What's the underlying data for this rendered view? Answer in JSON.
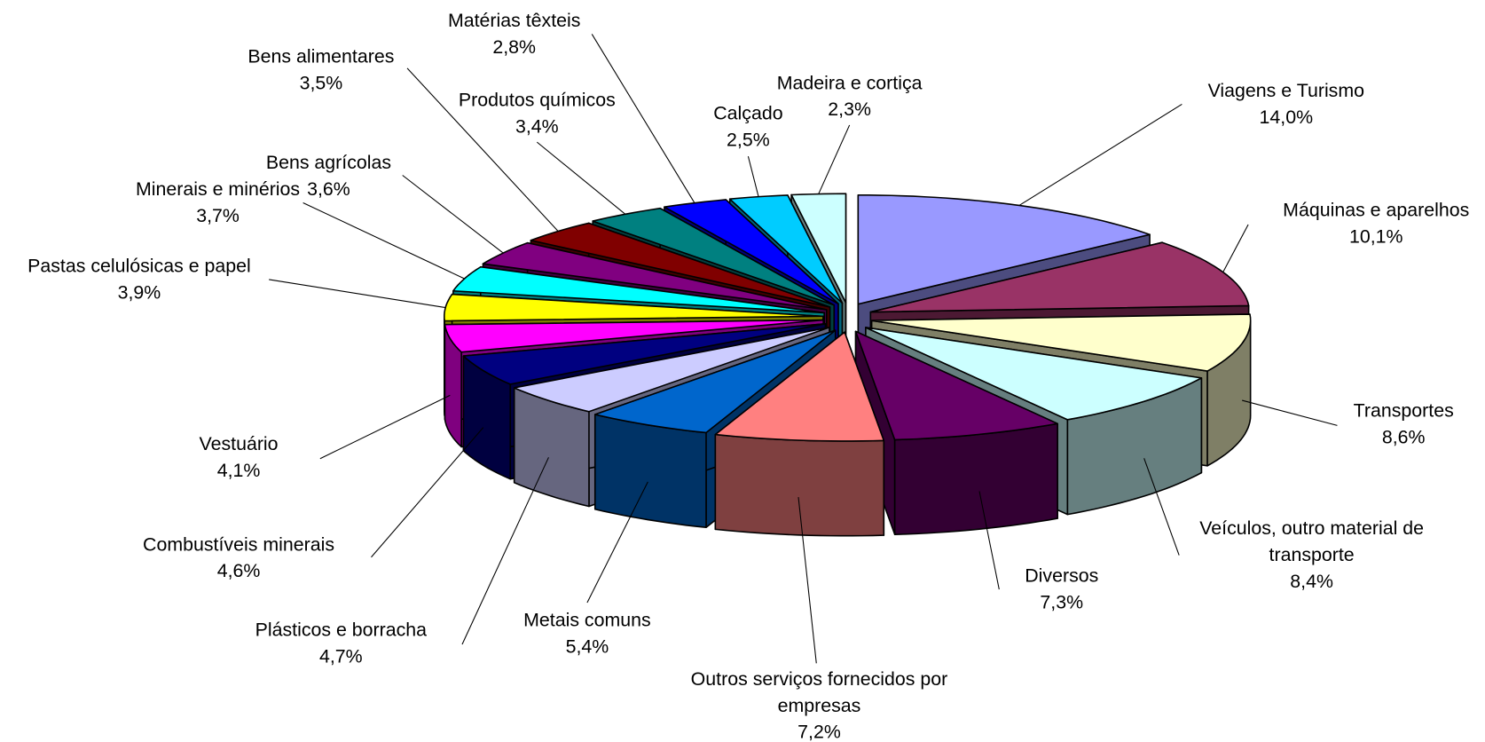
{
  "chart_data": {
    "type": "pie3d",
    "categories": [
      "Viagens e Turismo",
      "Máquinas e aparelhos",
      "Transportes",
      "Veículos, outro material de transporte",
      "Diversos",
      "Outros serviços fornecidos por empresas",
      "Metais comuns",
      "Plásticos e borracha",
      "Combustíveis minerais",
      "Vestuário",
      "Pastas celulósicas e papel",
      "Minerais e minérios",
      "Bens agrícolas",
      "Bens alimentares",
      "Produtos químicos",
      "Matérias têxteis",
      "Calçado",
      "Madeira e cortiça"
    ],
    "values": [
      14.0,
      10.1,
      8.6,
      8.4,
      7.3,
      7.2,
      5.4,
      4.7,
      4.6,
      4.1,
      3.9,
      3.7,
      3.6,
      3.5,
      3.4,
      2.8,
      2.5,
      2.3
    ],
    "value_labels": [
      "14,0%",
      "10,1%",
      "8,6%",
      "8,4%",
      "7,3%",
      "7,2%",
      "5,4%",
      "4,7%",
      "4,6%",
      "4,1%",
      "3,9%",
      "3,7%",
      "3,6%",
      "3,5%",
      "3,4%",
      "2,8%",
      "2,5%",
      "2,3%"
    ],
    "colors": [
      "#9999ff",
      "#993366",
      "#ffffcc",
      "#ccffff",
      "#660066",
      "#ff8080",
      "#0066cc",
      "#ccccff",
      "#000080",
      "#ff00ff",
      "#ffff00",
      "#00ffff",
      "#800080",
      "#800000",
      "#008080",
      "#0000ff",
      "#00ccff",
      "#ccffff"
    ]
  }
}
